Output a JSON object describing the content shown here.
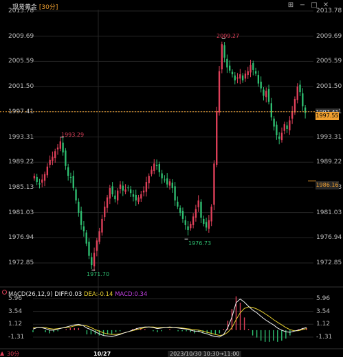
{
  "header": {
    "instrument": "现货黄金",
    "period": "30分",
    "icons": [
      "grid-icon",
      "minus-icon",
      "maximize-icon",
      "close-icon"
    ]
  },
  "price_axis": {
    "labels": [
      "2013.78",
      "2009.69",
      "2005.59",
      "2001.50",
      "1997.41",
      "1993.31",
      "1989.22",
      "1985.13",
      "1981.03",
      "1976.94",
      "1972.85"
    ]
  },
  "current_price": "1997.55",
  "current_price_top": "1997.41",
  "crosshair_price": "1986.16",
  "annotations": {
    "high": "2009.27",
    "local_high": "1993.29",
    "low": "1971.70",
    "local_low": "1976.73"
  },
  "macd": {
    "label": "MACD(26,12,9)",
    "diff": "DIFF:0.03",
    "dea": "DEA:-0.14",
    "macd": "MACD:0.34",
    "axis_labels": [
      "5.96",
      "3.54",
      "1.12",
      "-1.31"
    ]
  },
  "footer": {
    "period": "30分",
    "date": "10/27",
    "crosshair_time": "2023/10/30 10:30→11:00"
  },
  "colors": {
    "up": "#e0405a",
    "down": "#2fbf71",
    "diff_line": "#f2f2f2",
    "dea_line": "#e8d030",
    "macd_text": "#c040e0",
    "period_accent": "#f0a030"
  },
  "chart_data": {
    "type": "candlestick",
    "title": "现货黄金",
    "ylim": [
      1970.8,
      2013.78
    ],
    "price_series_close": [
      1987.0,
      1986.0,
      1985.6,
      1986.4,
      1987.3,
      1988.5,
      1989.6,
      1990.1,
      1991.0,
      1991.6,
      1992.6,
      1990.8,
      1988.6,
      1987.0,
      1986.7,
      1985.0,
      1983.0,
      1981.0,
      1979.0,
      1978.0,
      1976.0,
      1974.0,
      1972.5,
      1974.5,
      1976.5,
      1978.0,
      1980.0,
      1982.0,
      1983.5,
      1985.0,
      1984.0,
      1983.2,
      1984.6,
      1985.6,
      1984.6,
      1984.8,
      1985.0,
      1984.2,
      1983.6,
      1983.0,
      1983.5,
      1984.0,
      1984.6,
      1986.0,
      1987.0,
      1988.0,
      1989.0,
      1988.6,
      1987.6,
      1986.6,
      1986.3,
      1985.6,
      1986.1,
      1985.0,
      1983.0,
      1982.0,
      1981.0,
      1980.0,
      1979.0,
      1978.2,
      1979.2,
      1980.4,
      1981.6,
      1983.0,
      1980.2,
      1979.2,
      1978.6,
      1979.8,
      1982.0,
      1989.0,
      1997.5,
      2004.0,
      2008.4,
      2006.2,
      2004.6,
      2004.1,
      2003.5,
      2002.5,
      2003.0,
      2003.5,
      2002.5,
      2003.6,
      2004.0,
      2005.0,
      2004.2,
      2003.6,
      2002.0,
      2001.2,
      2000.0,
      2000.8,
      1999.0,
      1996.5,
      1995.0,
      1993.6,
      1993.0,
      1994.0,
      1995.4,
      1994.6,
      1996.0,
      1997.5,
      1999.5,
      2001.5,
      2000.6,
      1998.3,
      1997.2
    ],
    "x": [
      "10/27"
    ],
    "annotations": {
      "high": 2009.27,
      "local_high": 1993.29,
      "low": 1971.7,
      "local_low": 1976.73
    },
    "macd_ylim": [
      -1.31,
      5.96
    ],
    "macd_series": [
      {
        "name": "DIFF",
        "values": [
          0.2,
          0.5,
          0.5,
          0.3,
          0.0,
          0.0,
          0.2,
          0.4,
          0.6,
          0.8,
          1.0,
          1.1,
          0.9,
          0.4,
          0.1,
          -0.3,
          -0.7,
          -1.0,
          -1.1,
          -1.2,
          -1.0,
          -0.8,
          -0.5,
          -0.3,
          0.0,
          0.3,
          0.5,
          0.6,
          0.6,
          0.5,
          0.3,
          0.4,
          0.5,
          0.6,
          0.5,
          0.4,
          0.3,
          0.2,
          0.0,
          -0.2,
          -0.2,
          -0.5,
          -0.7,
          -1.0,
          -1.2,
          -1.3,
          -0.8,
          0.5,
          2.5,
          5.2,
          5.9,
          5.3,
          4.5,
          3.8,
          3.3,
          2.6,
          2.0,
          1.5,
          1.0,
          0.4,
          0.0,
          -0.3,
          -0.4,
          -0.2,
          0.0,
          0.3,
          0.5
        ]
      },
      {
        "name": "DEA",
        "values": [
          0.4,
          0.5,
          0.5,
          0.5,
          0.3,
          0.2,
          0.3,
          0.4,
          0.5,
          0.6,
          0.8,
          0.9,
          0.9,
          0.8,
          0.5,
          0.1,
          -0.2,
          -0.5,
          -0.7,
          -0.8,
          -0.8,
          -0.7,
          -0.5,
          -0.3,
          -0.1,
          0.1,
          0.3,
          0.5,
          0.6,
          0.6,
          0.5,
          0.5,
          0.5,
          0.5,
          0.5,
          0.5,
          0.4,
          0.3,
          0.2,
          0.1,
          0.0,
          -0.2,
          -0.4,
          -0.6,
          -0.8,
          -1.0,
          -0.9,
          -0.4,
          0.5,
          2.0,
          3.3,
          4.1,
          4.4,
          4.3,
          4.0,
          3.6,
          3.1,
          2.6,
          2.0,
          1.5,
          1.0,
          0.5,
          0.1,
          -0.1,
          -0.1,
          0.1,
          0.3
        ]
      }
    ]
  }
}
